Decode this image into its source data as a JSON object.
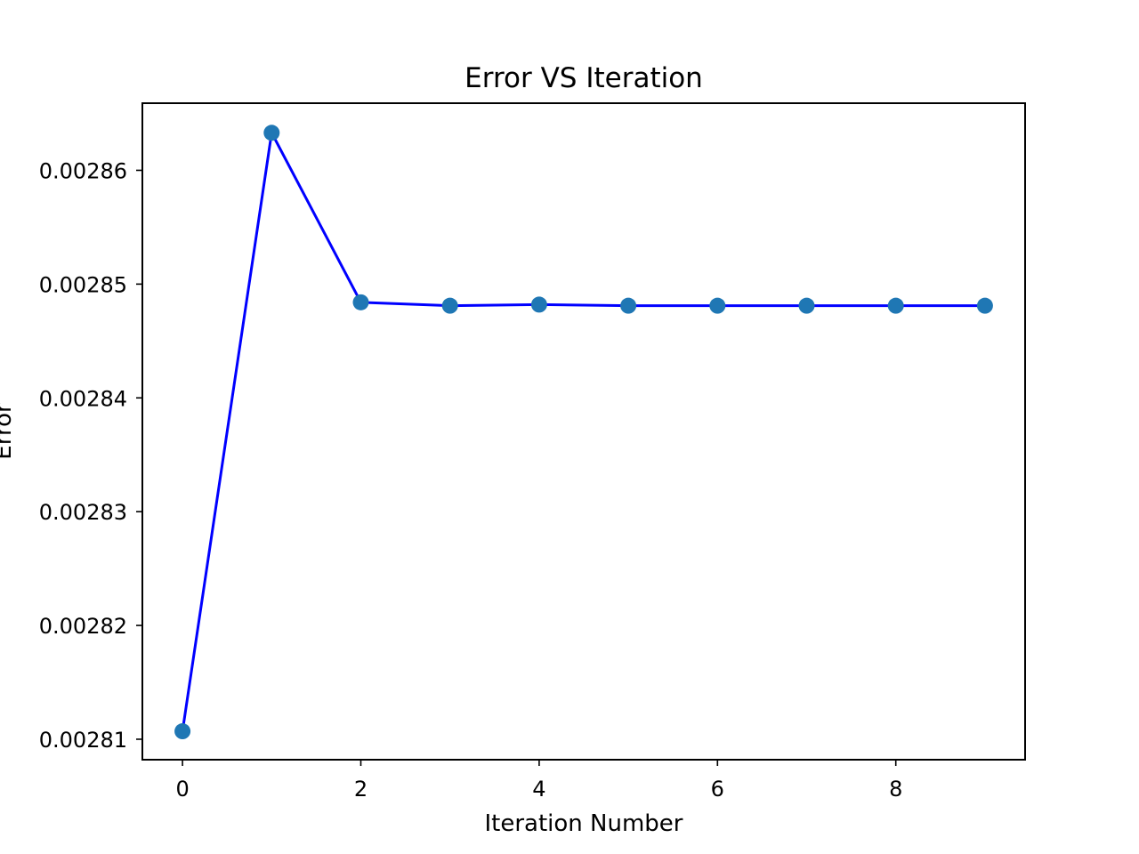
{
  "chart_data": {
    "type": "line",
    "title": "Error VS Iteration",
    "xlabel": "Iteration Number",
    "ylabel": "Error",
    "x": [
      0,
      1,
      2,
      3,
      4,
      5,
      6,
      7,
      8,
      9
    ],
    "series": [
      {
        "values": [
          0.0028107,
          0.0028633,
          0.0028484,
          0.0028481,
          0.0028482,
          0.0028481,
          0.0028481,
          0.0028481,
          0.0028481,
          0.0028481
        ],
        "line_color": "#0000ff",
        "marker_color": "#1f77b4"
      }
    ],
    "xlim": [
      -0.45,
      9.45
    ],
    "ylim": [
      0.0028082,
      0.0028659
    ],
    "xticks": [
      0,
      2,
      4,
      6,
      8
    ],
    "xtick_labels": [
      "0",
      "2",
      "4",
      "6",
      "8"
    ],
    "yticks": [
      0.00281,
      0.00282,
      0.00283,
      0.00284,
      0.00285,
      0.00286
    ],
    "ytick_labels": [
      "0.00281",
      "0.00282",
      "0.00283",
      "0.00284",
      "0.00285",
      "0.00286"
    ],
    "grid": false,
    "legend": "none"
  }
}
